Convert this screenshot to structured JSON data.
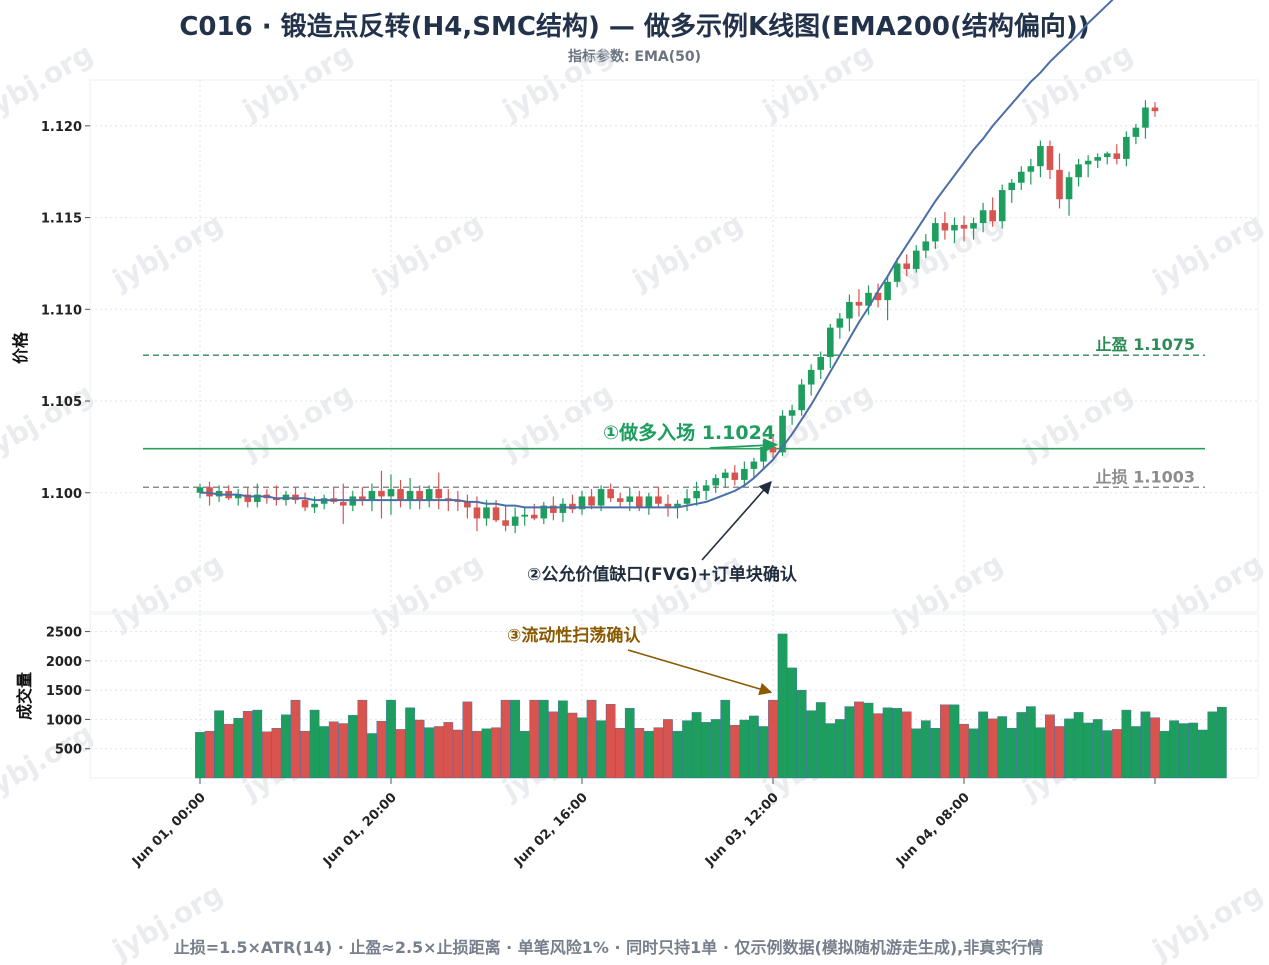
{
  "title": "C016 · 锻造点反转(H4,SMC结构) — 做多示例K线图(EMA200(结构偏向))",
  "subtitle": "指标参数: EMA(50)",
  "footer": "止损=1.5×ATR(14)  ·  止盈≈2.5×止损距离  ·  单笔风险1%  ·  同时只持1单  ·  仅示例数据(模拟随机游走生成),非真实行情",
  "watermark_text": "jybj.org",
  "colors": {
    "up": "#1e9e5e",
    "down": "#d9534f",
    "ema": "#4a6fa5",
    "entry": "#27a05a",
    "take_profit": "#2e8b57",
    "stop_loss": "#8c8c8c",
    "annot_entry": "#1e9e5e",
    "annot_fvg": "#1f2d3d",
    "annot_liq": "#8b5a00",
    "grid": "#dfe3e8"
  },
  "chart_data": {
    "type": "candlestick",
    "ylabel": "价格",
    "volume_ylabel": "成交量",
    "ylim": [
      1.0935,
      1.1225
    ],
    "volume_ylim": [
      0,
      2800
    ],
    "y_ticks": [
      "1.100",
      "1.105",
      "1.110",
      "1.115",
      "1.120"
    ],
    "y_tick_values": [
      1.1,
      1.105,
      1.11,
      1.115,
      1.12
    ],
    "volume_ticks": [
      "500",
      "1000",
      "1500",
      "2000",
      "2500"
    ],
    "volume_tick_values": [
      500,
      1000,
      1500,
      2000,
      2500
    ],
    "x_tick_labels": [
      "Jun 01, 00:00",
      "Jun 01, 20:00",
      "Jun 02, 16:00",
      "Jun 03, 12:00",
      "Jun 04, 08:00"
    ],
    "x_tick_bars": [
      0,
      20,
      40,
      60,
      80
    ],
    "grid": true,
    "candles": [
      {
        "o": 1.1,
        "h": 1.1005,
        "l": 1.0997,
        "c": 1.1003
      },
      {
        "o": 1.1003,
        "h": 1.1006,
        "l": 1.0993,
        "c": 1.0998
      },
      {
        "o": 1.0998,
        "h": 1.1004,
        "l": 1.0995,
        "c": 1.1001
      },
      {
        "o": 1.1001,
        "h": 1.1004,
        "l": 1.0996,
        "c": 1.0997
      },
      {
        "o": 1.0997,
        "h": 1.1002,
        "l": 1.0993,
        "c": 1.0999
      },
      {
        "o": 1.0999,
        "h": 1.1003,
        "l": 1.0992,
        "c": 1.0995
      },
      {
        "o": 1.0995,
        "h": 1.1005,
        "l": 1.0992,
        "c": 1.0999
      },
      {
        "o": 1.0999,
        "h": 1.1002,
        "l": 1.0994,
        "c": 1.0997
      },
      {
        "o": 1.0997,
        "h": 1.1004,
        "l": 1.0993,
        "c": 1.0996
      },
      {
        "o": 1.0996,
        "h": 1.1001,
        "l": 1.0993,
        "c": 1.0999
      },
      {
        "o": 1.0999,
        "h": 1.1003,
        "l": 1.0994,
        "c": 1.0996
      },
      {
        "o": 1.0996,
        "h": 1.1,
        "l": 1.099,
        "c": 1.0992
      },
      {
        "o": 1.0992,
        "h": 1.0998,
        "l": 1.0989,
        "c": 1.0994
      },
      {
        "o": 1.0994,
        "h": 1.0999,
        "l": 1.0991,
        "c": 1.0997
      },
      {
        "o": 1.0997,
        "h": 1.1003,
        "l": 1.0994,
        "c": 1.0995
      },
      {
        "o": 1.0995,
        "h": 1.1005,
        "l": 1.0983,
        "c": 1.0993
      },
      {
        "o": 1.0993,
        "h": 1.1001,
        "l": 1.099,
        "c": 1.0998
      },
      {
        "o": 1.0998,
        "h": 1.1003,
        "l": 1.0993,
        "c": 1.0996
      },
      {
        "o": 1.0996,
        "h": 1.1005,
        "l": 1.099,
        "c": 1.1001
      },
      {
        "o": 1.1001,
        "h": 1.1012,
        "l": 1.0986,
        "c": 1.0998
      },
      {
        "o": 1.0998,
        "h": 1.101,
        "l": 1.0988,
        "c": 1.1002
      },
      {
        "o": 1.1002,
        "h": 1.1007,
        "l": 1.0992,
        "c": 1.0996
      },
      {
        "o": 1.0996,
        "h": 1.1008,
        "l": 1.0991,
        "c": 1.1001
      },
      {
        "o": 1.1001,
        "h": 1.1004,
        "l": 1.0991,
        "c": 1.0996
      },
      {
        "o": 1.0996,
        "h": 1.1004,
        "l": 1.0992,
        "c": 1.1002
      },
      {
        "o": 1.1002,
        "h": 1.1011,
        "l": 1.0991,
        "c": 1.0997
      },
      {
        "o": 1.0997,
        "h": 1.1002,
        "l": 1.099,
        "c": 1.0996
      },
      {
        "o": 1.0996,
        "h": 1.1001,
        "l": 1.099,
        "c": 1.0995
      },
      {
        "o": 1.0995,
        "h": 1.0999,
        "l": 1.0986,
        "c": 1.0992
      },
      {
        "o": 1.0992,
        "h": 1.0998,
        "l": 1.0979,
        "c": 1.0986
      },
      {
        "o": 1.0986,
        "h": 1.0996,
        "l": 1.0982,
        "c": 1.0992
      },
      {
        "o": 1.0992,
        "h": 1.0996,
        "l": 1.0984,
        "c": 1.0985
      },
      {
        "o": 1.0985,
        "h": 1.0993,
        "l": 1.0979,
        "c": 1.0982
      },
      {
        "o": 1.0982,
        "h": 1.0992,
        "l": 1.0978,
        "c": 1.0987
      },
      {
        "o": 1.0987,
        "h": 1.0992,
        "l": 1.0982,
        "c": 1.0988
      },
      {
        "o": 1.0988,
        "h": 1.0994,
        "l": 1.0985,
        "c": 1.0986
      },
      {
        "o": 1.0986,
        "h": 1.0995,
        "l": 1.0983,
        "c": 1.0993
      },
      {
        "o": 1.0993,
        "h": 1.0998,
        "l": 1.0985,
        "c": 1.0989
      },
      {
        "o": 1.0989,
        "h": 1.0997,
        "l": 1.0984,
        "c": 1.0994
      },
      {
        "o": 1.0994,
        "h": 1.0999,
        "l": 1.0989,
        "c": 1.0991
      },
      {
        "o": 1.0991,
        "h": 1.1001,
        "l": 1.0988,
        "c": 1.0998
      },
      {
        "o": 1.0998,
        "h": 1.1002,
        "l": 1.0991,
        "c": 1.0993
      },
      {
        "o": 1.0993,
        "h": 1.1004,
        "l": 1.099,
        "c": 1.1002
      },
      {
        "o": 1.1002,
        "h": 1.1005,
        "l": 1.0995,
        "c": 1.0997
      },
      {
        "o": 1.0997,
        "h": 1.1,
        "l": 1.0992,
        "c": 1.0995
      },
      {
        "o": 1.0995,
        "h": 1.1003,
        "l": 1.099,
        "c": 1.0998
      },
      {
        "o": 1.0998,
        "h": 1.1001,
        "l": 1.099,
        "c": 1.0992
      },
      {
        "o": 1.0992,
        "h": 1.1,
        "l": 1.0988,
        "c": 1.0998
      },
      {
        "o": 1.0998,
        "h": 1.1003,
        "l": 1.0992,
        "c": 1.0994
      },
      {
        "o": 1.0994,
        "h": 1.0999,
        "l": 1.0987,
        "c": 1.0992
      },
      {
        "o": 1.0992,
        "h": 1.0996,
        "l": 1.0986,
        "c": 1.0994
      },
      {
        "o": 1.0994,
        "h": 1.1002,
        "l": 1.099,
        "c": 1.0997
      },
      {
        "o": 1.0997,
        "h": 1.1006,
        "l": 1.0993,
        "c": 1.1001
      },
      {
        "o": 1.1001,
        "h": 1.1007,
        "l": 1.0996,
        "c": 1.1004
      },
      {
        "o": 1.1004,
        "h": 1.101,
        "l": 1.1,
        "c": 1.1008
      },
      {
        "o": 1.1008,
        "h": 1.1013,
        "l": 1.1003,
        "c": 1.1011
      },
      {
        "o": 1.1011,
        "h": 1.1015,
        "l": 1.1004,
        "c": 1.1007
      },
      {
        "o": 1.1007,
        "h": 1.1017,
        "l": 1.1004,
        "c": 1.1013
      },
      {
        "o": 1.1013,
        "h": 1.1019,
        "l": 1.1008,
        "c": 1.1017
      },
      {
        "o": 1.1017,
        "h": 1.1029,
        "l": 1.1013,
        "c": 1.1025
      },
      {
        "o": 1.1025,
        "h": 1.1032,
        "l": 1.1019,
        "c": 1.1022
      },
      {
        "o": 1.1022,
        "h": 1.1045,
        "l": 1.102,
        "c": 1.1042
      },
      {
        "o": 1.1042,
        "h": 1.1048,
        "l": 1.1037,
        "c": 1.1045
      },
      {
        "o": 1.1045,
        "h": 1.1062,
        "l": 1.1042,
        "c": 1.1059
      },
      {
        "o": 1.1059,
        "h": 1.107,
        "l": 1.1053,
        "c": 1.1067
      },
      {
        "o": 1.1067,
        "h": 1.1077,
        "l": 1.1062,
        "c": 1.1074
      },
      {
        "o": 1.1074,
        "h": 1.1092,
        "l": 1.1068,
        "c": 1.109
      },
      {
        "o": 1.109,
        "h": 1.1098,
        "l": 1.1084,
        "c": 1.1095
      },
      {
        "o": 1.1095,
        "h": 1.1108,
        "l": 1.1088,
        "c": 1.1104
      },
      {
        "o": 1.1104,
        "h": 1.1111,
        "l": 1.1096,
        "c": 1.1102
      },
      {
        "o": 1.1102,
        "h": 1.1113,
        "l": 1.1097,
        "c": 1.1109
      },
      {
        "o": 1.1109,
        "h": 1.1114,
        "l": 1.1101,
        "c": 1.1105
      },
      {
        "o": 1.1105,
        "h": 1.1118,
        "l": 1.1094,
        "c": 1.1115
      },
      {
        "o": 1.1115,
        "h": 1.1128,
        "l": 1.1112,
        "c": 1.1125
      },
      {
        "o": 1.1125,
        "h": 1.113,
        "l": 1.1118,
        "c": 1.1122
      },
      {
        "o": 1.1122,
        "h": 1.1135,
        "l": 1.112,
        "c": 1.1132
      },
      {
        "o": 1.1132,
        "h": 1.1141,
        "l": 1.1128,
        "c": 1.1137
      },
      {
        "o": 1.1137,
        "h": 1.115,
        "l": 1.1133,
        "c": 1.1147
      },
      {
        "o": 1.1147,
        "h": 1.1153,
        "l": 1.1138,
        "c": 1.1143
      },
      {
        "o": 1.1143,
        "h": 1.115,
        "l": 1.1136,
        "c": 1.1146
      },
      {
        "o": 1.1146,
        "h": 1.1151,
        "l": 1.1137,
        "c": 1.1144
      },
      {
        "o": 1.1144,
        "h": 1.115,
        "l": 1.1138,
        "c": 1.1147
      },
      {
        "o": 1.1147,
        "h": 1.1158,
        "l": 1.1142,
        "c": 1.1154
      },
      {
        "o": 1.1154,
        "h": 1.1161,
        "l": 1.1145,
        "c": 1.1148
      },
      {
        "o": 1.1148,
        "h": 1.1168,
        "l": 1.1144,
        "c": 1.1165
      },
      {
        "o": 1.1165,
        "h": 1.1171,
        "l": 1.1158,
        "c": 1.1169
      },
      {
        "o": 1.1169,
        "h": 1.1178,
        "l": 1.1165,
        "c": 1.1175
      },
      {
        "o": 1.1175,
        "h": 1.1182,
        "l": 1.1168,
        "c": 1.1178
      },
      {
        "o": 1.1178,
        "h": 1.1192,
        "l": 1.1172,
        "c": 1.1189
      },
      {
        "o": 1.1189,
        "h": 1.1192,
        "l": 1.1171,
        "c": 1.1176
      },
      {
        "o": 1.1176,
        "h": 1.1185,
        "l": 1.1155,
        "c": 1.116
      },
      {
        "o": 1.116,
        "h": 1.1175,
        "l": 1.1151,
        "c": 1.1172
      },
      {
        "o": 1.1172,
        "h": 1.1182,
        "l": 1.1167,
        "c": 1.1179
      },
      {
        "o": 1.1179,
        "h": 1.1184,
        "l": 1.1172,
        "c": 1.1181
      },
      {
        "o": 1.1181,
        "h": 1.1185,
        "l": 1.1177,
        "c": 1.1183
      },
      {
        "o": 1.1183,
        "h": 1.1186,
        "l": 1.1179,
        "c": 1.1185
      },
      {
        "o": 1.1185,
        "h": 1.119,
        "l": 1.1179,
        "c": 1.1182
      },
      {
        "o": 1.1182,
        "h": 1.1197,
        "l": 1.1178,
        "c": 1.1194
      },
      {
        "o": 1.1194,
        "h": 1.1201,
        "l": 1.119,
        "c": 1.1199
      },
      {
        "o": 1.1199,
        "h": 1.1214,
        "l": 1.1193,
        "c": 1.121
      },
      {
        "o": 1.121,
        "h": 1.1213,
        "l": 1.1205,
        "c": 1.1208
      }
    ],
    "volumes": [
      780,
      800,
      1150,
      920,
      1020,
      1140,
      1160,
      790,
      850,
      1080,
      1330,
      800,
      1160,
      880,
      960,
      930,
      1070,
      1330,
      760,
      970,
      1330,
      830,
      1200,
      990,
      860,
      880,
      950,
      820,
      1300,
      800,
      840,
      860,
      1330,
      1330,
      800,
      1330,
      1330,
      1130,
      1320,
      1110,
      1030,
      1330,
      980,
      1260,
      850,
      1190,
      850,
      800,
      860,
      1000,
      800,
      980,
      1120,
      950,
      1000,
      1330,
      900,
      990,
      1060,
      880,
      1330,
      2460,
      1880,
      1500,
      1150,
      1290,
      930,
      1000,
      1220,
      1300,
      1280,
      1100,
      1200,
      1190,
      1130,
      840,
      980,
      850,
      1250,
      1250,
      920,
      840,
      1130,
      1010,
      1050,
      850,
      1120,
      1220,
      860,
      1080,
      880,
      1010,
      1120,
      940,
      1000,
      810,
      830,
      1160,
      880,
      1130,
      1030,
      800,
      980,
      930,
      940,
      820,
      1130,
      1210
    ],
    "ema_label": "EMA(50)",
    "ema": [
      1.1,
      1.1,
      1.0999,
      1.0999,
      1.0999,
      1.0998,
      1.0998,
      1.0998,
      1.0997,
      1.0997,
      1.0997,
      1.0997,
      1.0996,
      1.0996,
      1.0996,
      1.0996,
      1.0996,
      1.0996,
      1.0996,
      1.0996,
      1.0996,
      1.0996,
      1.0996,
      1.0996,
      1.0996,
      1.0996,
      1.0996,
      1.0996,
      1.0995,
      1.0995,
      1.0994,
      1.0994,
      1.0993,
      1.0993,
      1.0992,
      1.0992,
      1.0992,
      1.0992,
      1.0992,
      1.0992,
      1.0992,
      1.0992,
      1.0992,
      1.0992,
      1.0992,
      1.0992,
      1.0992,
      1.0992,
      1.0992,
      1.0992,
      1.0992,
      1.0993,
      1.0994,
      1.0995,
      1.0997,
      1.0999,
      1.1001,
      1.1004,
      1.1008,
      1.1013,
      1.1018,
      1.1025,
      1.1032,
      1.104,
      1.1048,
      1.1057,
      1.1066,
      1.1075,
      1.1084,
      1.1093,
      1.1101,
      1.111,
      1.1118,
      1.1127,
      1.1135,
      1.1143,
      1.1151,
      1.1159,
      1.1166,
      1.1173,
      1.118,
      1.1187,
      1.1193,
      1.12,
      1.1206,
      1.1212,
      1.1218,
      1.1224,
      1.1229,
      1.1235,
      1.124,
      1.1245,
      1.125,
      1.1256,
      1.1261,
      1.1266,
      1.1271,
      1.1276,
      1.1281,
      1.1286,
      1.1291,
      1.1296,
      1.1301
    ],
    "levels": [
      {
        "name": "entry",
        "value": 1.1024,
        "label": ""
      },
      {
        "name": "take_profit",
        "value": 1.1075,
        "label": "止盈 1.1075"
      },
      {
        "name": "stop_loss",
        "value": 1.1003,
        "label": "止损 1.1003"
      }
    ],
    "annotations": [
      {
        "text": "①做多入场 1.1024",
        "target_bar": 61,
        "target_value": 1.1024
      },
      {
        "text": "②公允价值缺口(FVG)+订单块确认",
        "target_bar": 60,
        "target_value": 1.1007
      },
      {
        "text": "③流动性扫荡确认",
        "target_bar": 60,
        "target_volume": 1600
      }
    ]
  }
}
